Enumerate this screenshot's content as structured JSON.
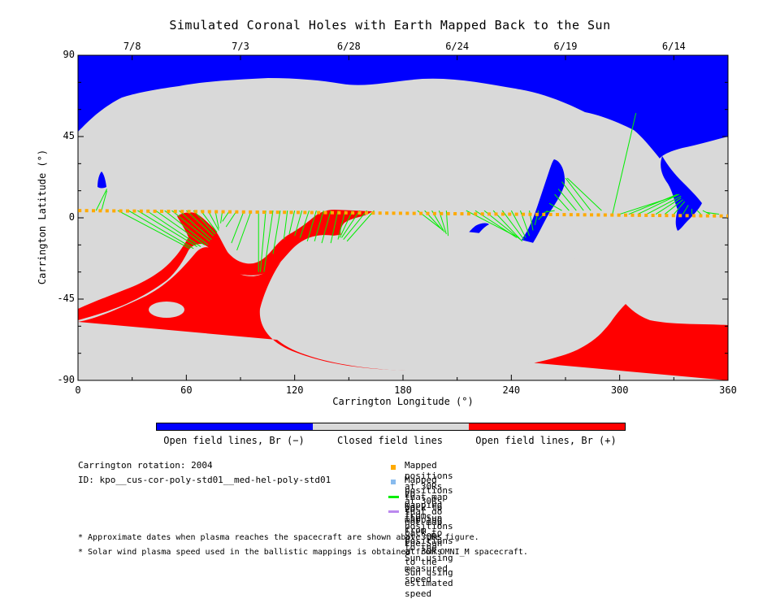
{
  "chart_data": {
    "type": "map",
    "title": "Simulated Coronal Holes with Earth Mapped Back to the Sun",
    "xlabel": "Carrington Longitude (°)",
    "ylabel": "Carrington Latitude (°)",
    "xlim": [
      0,
      360
    ],
    "ylim": [
      -90,
      90
    ],
    "x_ticks": [
      "0",
      "60",
      "120",
      "180",
      "240",
      "300",
      "360"
    ],
    "y_ticks": [
      "90",
      "45",
      "0",
      "-45",
      "-90"
    ],
    "top_axis_dates": [
      {
        "label": "7/8",
        "longitude": 30
      },
      {
        "label": "7/3",
        "longitude": 90
      },
      {
        "label": "6/28",
        "longitude": 150
      },
      {
        "label": "6/24",
        "longitude": 210
      },
      {
        "label": "6/19",
        "longitude": 270
      },
      {
        "label": "6/14",
        "longitude": 330
      }
    ],
    "colors": {
      "open_negative": "#0000ff",
      "closed": "#d9d9d9",
      "open_positive": "#ff0000",
      "mapped_point": "#ffaa00",
      "unmapped_point": "#88bbee",
      "measured_speed_line": "#00ee00",
      "estimated_speed_line": "#bb88ee"
    },
    "colorbar_labels": [
      "Open field lines, Br (−)",
      "Closed field lines",
      "Open field lines, Br (+)"
    ],
    "mapped_longitudes_start": 1,
    "mapped_longitudes_end": 360,
    "mapped_latitude": 4,
    "mapped_latitude_end": 1,
    "mappings": [
      [
        10,
        4,
        16,
        16
      ],
      [
        13,
        4,
        16,
        15
      ],
      [
        22,
        4,
        62,
        -17
      ],
      [
        28,
        4,
        64,
        -17
      ],
      [
        33,
        4,
        66,
        -16
      ],
      [
        38,
        4,
        68,
        -16
      ],
      [
        43,
        4,
        70,
        -15
      ],
      [
        48,
        4,
        72,
        -15
      ],
      [
        52,
        4,
        73,
        -13
      ],
      [
        56,
        4,
        74,
        -12
      ],
      [
        60,
        4,
        75,
        -10
      ],
      [
        64,
        4,
        76,
        -9
      ],
      [
        68,
        4,
        77,
        -8
      ],
      [
        72,
        4,
        78,
        -7
      ],
      [
        76,
        4,
        78,
        -6
      ],
      [
        80,
        4,
        79,
        -3
      ],
      [
        84,
        4,
        80,
        -2
      ],
      [
        88,
        4,
        82,
        -5
      ],
      [
        92,
        4,
        85,
        -14
      ],
      [
        96,
        4,
        88,
        -18
      ],
      [
        100,
        4,
        100,
        -30
      ],
      [
        104,
        4,
        101,
        -30
      ],
      [
        108,
        4,
        103,
        -30
      ],
      [
        112,
        4,
        108,
        -20
      ],
      [
        116,
        4,
        114,
        -12
      ],
      [
        120,
        4,
        117,
        -9
      ],
      [
        124,
        4,
        120,
        -10
      ],
      [
        128,
        4,
        123,
        -11
      ],
      [
        132,
        4,
        127,
        -13
      ],
      [
        136,
        4,
        131,
        -13
      ],
      [
        140,
        4,
        135,
        -14
      ],
      [
        144,
        4,
        140,
        -14
      ],
      [
        148,
        4,
        144,
        -12
      ],
      [
        152,
        4,
        145,
        -11
      ],
      [
        156,
        4,
        146,
        -11
      ],
      [
        160,
        4,
        147,
        -12
      ],
      [
        164,
        4,
        149,
        -13
      ],
      [
        188,
        4,
        201,
        -6
      ],
      [
        192,
        4,
        202,
        -7
      ],
      [
        196,
        4,
        203,
        -8
      ],
      [
        200,
        4,
        204,
        -9
      ],
      [
        204,
        4,
        205,
        -10
      ],
      [
        215,
        4,
        242,
        -10
      ],
      [
        220,
        4,
        243,
        -11
      ],
      [
        225,
        4,
        245,
        -12
      ],
      [
        230,
        4,
        246,
        -13
      ],
      [
        235,
        4,
        247,
        -12
      ],
      [
        240,
        4,
        248,
        -11
      ],
      [
        245,
        4,
        250,
        -10
      ],
      [
        250,
        4,
        252,
        -7
      ],
      [
        255,
        4,
        253,
        -4
      ],
      [
        260,
        4,
        255,
        -1
      ],
      [
        264,
        4,
        258,
        3
      ],
      [
        268,
        4,
        261,
        8
      ],
      [
        272,
        4,
        264,
        13
      ],
      [
        276,
        4,
        266,
        16
      ],
      [
        280,
        4,
        268,
        20
      ],
      [
        284,
        4,
        270,
        22
      ],
      [
        290,
        4,
        271,
        22
      ],
      [
        296,
        2,
        309,
        58
      ],
      [
        300,
        2,
        331,
        12
      ],
      [
        305,
        2,
        332,
        13
      ],
      [
        310,
        2,
        333,
        13
      ],
      [
        315,
        2,
        334,
        12
      ],
      [
        320,
        2,
        334,
        11
      ],
      [
        325,
        2,
        335,
        10
      ],
      [
        330,
        2,
        336,
        9
      ],
      [
        335,
        2,
        338,
        7
      ],
      [
        340,
        2,
        340,
        5
      ],
      [
        345,
        2,
        343,
        4
      ],
      [
        350,
        2,
        346,
        4
      ],
      [
        355,
        2,
        348,
        3
      ]
    ]
  },
  "colorbar": {
    "labels": [
      "Open field lines, Br (−)",
      "Closed field lines",
      "Open field lines, Br (+)"
    ]
  },
  "info": {
    "carrington_rotation": "Carrington rotation: 2004",
    "model_id": "ID: kpo__cus-cor-poly-std01__med-hel-poly-std01"
  },
  "legend": [
    {
      "label": "Mapped positions at 30Rs that map back to the Sun",
      "symbol": "square",
      "color": "#ffaa00"
    },
    {
      "label": "Mapped positions at 30Rs that do not map back to the Sun",
      "symbol": "square",
      "color": "#88bbee"
    },
    {
      "label": "2D mapping from positions at 30Rs to the Sun using measured speed",
      "symbol": "line",
      "color": "#00ee00"
    },
    {
      "label": "2D mapping from positions at 30Rs to the Sun using estimated speed",
      "symbol": "line",
      "color": "#bb88ee"
    }
  ],
  "notes": [
    "* Approximate dates when plasma reaches the spacecraft are shown above the figure.",
    "* Solar wind plasma speed used in the ballistic mappings is obtained from OMNI_M spacecraft."
  ]
}
